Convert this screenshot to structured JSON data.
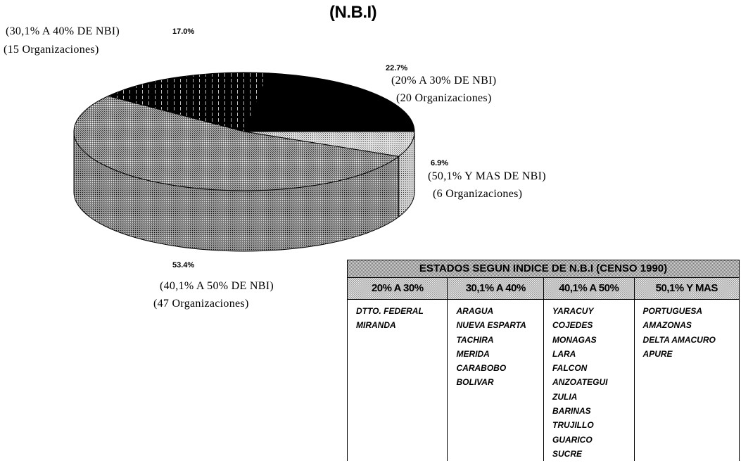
{
  "title": "(N.B.I)",
  "chart_data": {
    "type": "pie",
    "style": "3d",
    "title": "(N.B.I)",
    "slices": [
      {
        "pct_label": "22.7%",
        "value": 22.7,
        "range": "(20% A 30% DE NBI)",
        "count": "(20 Organizaciones)",
        "fill": "black"
      },
      {
        "pct_label": "17.0%",
        "value": 17.0,
        "range": "(30,1% A 40% DE NBI)",
        "count": "(15 Organizaciones)",
        "fill": "black-vertical-lines"
      },
      {
        "pct_label": "53.4%",
        "value": 53.4,
        "range": "(40,1% A 50% DE NBI)",
        "count": "(47 Organizaciones)",
        "fill": "gray-halftone"
      },
      {
        "pct_label": "6.9%",
        "value": 6.9,
        "range": "(50,1% Y MAS DE NBI)",
        "count": "(6 Organizaciones)",
        "fill": "light-dots"
      }
    ],
    "draw_order_clockwise_from_3_oclock": [
      3,
      2,
      1,
      0
    ]
  },
  "table": {
    "title": "ESTADOS SEGUN INDICE DE N.B.I (CENSO 1990)",
    "columns": [
      {
        "header": "20% A 30%",
        "items": [
          "DTTO. FEDERAL",
          "MIRANDA"
        ]
      },
      {
        "header": "30,1% A 40%",
        "items": [
          "ARAGUA",
          "NUEVA ESPARTA",
          "TACHIRA",
          "MERIDA",
          "CARABOBO",
          "BOLIVAR"
        ]
      },
      {
        "header": "40,1% A 50%",
        "items": [
          "YARACUY",
          "COJEDES",
          "MONAGAS",
          "LARA",
          "FALCON",
          "ANZOATEGUI",
          "ZULIA",
          "BARINAS",
          "TRUJILLO",
          "GUARICO",
          "SUCRE"
        ]
      },
      {
        "header": "50,1% Y MAS",
        "items": [
          "PORTUGUESA",
          "AMAZONAS",
          "DELTA AMACURO",
          "APURE"
        ]
      }
    ]
  }
}
